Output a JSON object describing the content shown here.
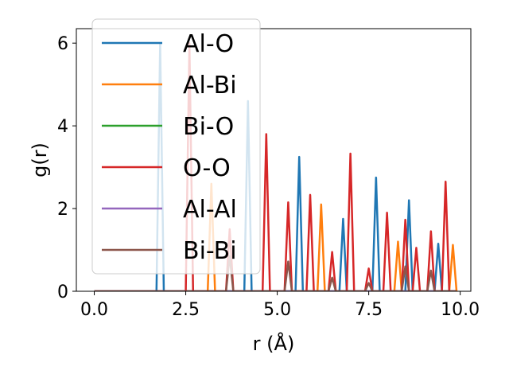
{
  "chart_data": {
    "type": "line",
    "xlabel": "r (Å)",
    "ylabel": "g(r)",
    "xlim": [
      -0.49,
      10.29
    ],
    "ylim": [
      0,
      6.35
    ],
    "xticks": [
      "0.0",
      "2.5",
      "5.0",
      "7.5",
      "10.0"
    ],
    "xtick_values": [
      0,
      2.5,
      5,
      7.5,
      10
    ],
    "yticks": [
      "0",
      "2",
      "4",
      "6"
    ],
    "ytick_values": [
      0,
      2,
      4,
      6
    ],
    "grid": false,
    "legend_position": "top-left",
    "series": [
      {
        "name": "Al-O",
        "color": "#1f77b4",
        "peaks": [
          [
            1.8,
            6.0
          ],
          [
            4.2,
            4.6
          ],
          [
            5.6,
            3.25
          ],
          [
            6.8,
            1.75
          ],
          [
            7.7,
            2.75
          ],
          [
            8.6,
            2.2
          ],
          [
            9.4,
            1.15
          ]
        ]
      },
      {
        "name": "Al-Bi",
        "color": "#ff7f0e",
        "peaks": [
          [
            3.2,
            2.6
          ],
          [
            6.2,
            2.1
          ],
          [
            8.3,
            1.2
          ],
          [
            9.8,
            1.12
          ]
        ]
      },
      {
        "name": "Bi-O",
        "color": "#2ca02c",
        "peaks": []
      },
      {
        "name": "O-O",
        "color": "#d62728",
        "peaks": [
          [
            2.6,
            6.0
          ],
          [
            3.7,
            1.5
          ],
          [
            4.7,
            3.8
          ],
          [
            5.3,
            2.15
          ],
          [
            5.9,
            2.33
          ],
          [
            6.5,
            0.95
          ],
          [
            7.0,
            3.33
          ],
          [
            7.5,
            0.55
          ],
          [
            8.0,
            1.9
          ],
          [
            8.5,
            1.73
          ],
          [
            8.8,
            1.05
          ],
          [
            9.2,
            1.45
          ],
          [
            9.6,
            2.65
          ]
        ]
      },
      {
        "name": "Al-Al",
        "color": "#9467bd",
        "peaks": []
      },
      {
        "name": "Bi-Bi",
        "color": "#8c564b",
        "peaks": [
          [
            3.7,
            0.85
          ],
          [
            5.3,
            0.72
          ],
          [
            6.5,
            0.33
          ],
          [
            7.5,
            0.2
          ],
          [
            8.5,
            0.6
          ],
          [
            9.2,
            0.5
          ]
        ]
      }
    ]
  }
}
